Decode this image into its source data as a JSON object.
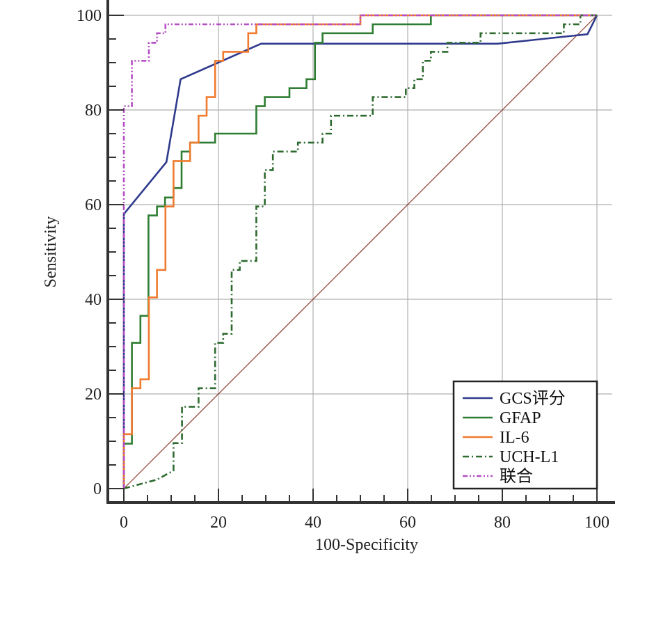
{
  "chart_data": {
    "type": "line",
    "title": "",
    "xlabel": "100-Specificity",
    "ylabel": "Sensitivity",
    "xlim": [
      0,
      100
    ],
    "ylim": [
      0,
      100
    ],
    "xticks": [
      "0",
      "20",
      "40",
      "60",
      "80",
      "100"
    ],
    "yticks": [
      "0",
      "20",
      "40",
      "60",
      "80",
      "100"
    ],
    "grid": true,
    "legend_position": "bottom-right",
    "reference_line": {
      "x": [
        0,
        100
      ],
      "y": [
        0,
        100
      ],
      "color": "#8b3a2a"
    },
    "series": [
      {
        "name": "GCS评分",
        "color": "#2e3a8c",
        "dash": "solid",
        "points": [
          [
            0,
            0
          ],
          [
            0,
            58
          ],
          [
            9,
            69
          ],
          [
            12,
            86.5
          ],
          [
            29,
            94
          ],
          [
            79,
            94
          ],
          [
            98,
            96
          ],
          [
            98,
            96
          ],
          [
            100,
            100
          ]
        ]
      },
      {
        "name": "GFAP",
        "color": "#2f7d32",
        "dash": "solid",
        "points": [
          [
            0,
            0
          ],
          [
            0,
            9.5
          ],
          [
            1.7,
            9.5
          ],
          [
            1.7,
            30.8
          ],
          [
            3.5,
            30.8
          ],
          [
            3.5,
            36.5
          ],
          [
            5.2,
            36.5
          ],
          [
            5.2,
            57.7
          ],
          [
            7,
            57.7
          ],
          [
            7,
            59.6
          ],
          [
            8.7,
            59.6
          ],
          [
            8.7,
            61.5
          ],
          [
            10.5,
            61.5
          ],
          [
            10.5,
            63.5
          ],
          [
            12.2,
            63.5
          ],
          [
            12.2,
            71.2
          ],
          [
            14,
            71.2
          ],
          [
            14,
            73.1
          ],
          [
            19.3,
            73.1
          ],
          [
            19.3,
            75
          ],
          [
            28,
            75
          ],
          [
            28,
            80.8
          ],
          [
            29.8,
            80.8
          ],
          [
            29.8,
            82.7
          ],
          [
            35,
            82.7
          ],
          [
            35,
            84.6
          ],
          [
            38.6,
            84.6
          ],
          [
            38.6,
            86.5
          ],
          [
            40.4,
            86.5
          ],
          [
            40.4,
            94.2
          ],
          [
            42,
            94.2
          ],
          [
            42,
            96.2
          ],
          [
            52.6,
            96.2
          ],
          [
            52.6,
            98.1
          ],
          [
            64.9,
            98.1
          ],
          [
            64.9,
            100
          ],
          [
            100,
            100
          ]
        ]
      },
      {
        "name": "IL-6",
        "color": "#f07a2e",
        "dash": "solid",
        "points": [
          [
            0,
            0
          ],
          [
            0,
            11.5
          ],
          [
            1.7,
            11.5
          ],
          [
            1.7,
            21.2
          ],
          [
            3.5,
            21.2
          ],
          [
            3.5,
            23.1
          ],
          [
            5.3,
            23.1
          ],
          [
            5.3,
            40.4
          ],
          [
            7,
            40.4
          ],
          [
            7,
            46.2
          ],
          [
            8.8,
            46.2
          ],
          [
            8.8,
            59.6
          ],
          [
            10.5,
            59.6
          ],
          [
            10.5,
            69.2
          ],
          [
            14,
            69.2
          ],
          [
            14,
            73.1
          ],
          [
            15.8,
            73.1
          ],
          [
            15.8,
            78.8
          ],
          [
            17.5,
            78.8
          ],
          [
            17.5,
            82.7
          ],
          [
            19.3,
            82.7
          ],
          [
            19.3,
            90.4
          ],
          [
            21,
            90.4
          ],
          [
            21,
            92.3
          ],
          [
            26.3,
            92.3
          ],
          [
            26.3,
            96.2
          ],
          [
            28,
            96.2
          ],
          [
            28,
            98.1
          ],
          [
            50,
            98.1
          ],
          [
            50,
            100
          ],
          [
            100,
            100
          ]
        ]
      },
      {
        "name": "UCH-L1",
        "color": "#2d6a2f",
        "dash": "dashdot",
        "points": [
          [
            0,
            0
          ],
          [
            7,
            1.9
          ],
          [
            10.5,
            3.8
          ],
          [
            10.5,
            9.6
          ],
          [
            12.3,
            9.6
          ],
          [
            12.3,
            17.3
          ],
          [
            15.8,
            17.3
          ],
          [
            15.8,
            21.2
          ],
          [
            19.3,
            21.2
          ],
          [
            19.3,
            30.8
          ],
          [
            21,
            30.8
          ],
          [
            21,
            32.7
          ],
          [
            22.8,
            32.7
          ],
          [
            22.8,
            46.2
          ],
          [
            24.5,
            46.2
          ],
          [
            24.5,
            48.1
          ],
          [
            28,
            48.1
          ],
          [
            28,
            59.6
          ],
          [
            29.8,
            59.6
          ],
          [
            29.8,
            67.3
          ],
          [
            31.5,
            67.3
          ],
          [
            31.5,
            71.2
          ],
          [
            36.8,
            71.2
          ],
          [
            36.8,
            73.1
          ],
          [
            42,
            73.1
          ],
          [
            42,
            75
          ],
          [
            43.8,
            75
          ],
          [
            43.8,
            78.8
          ],
          [
            52.6,
            78.8
          ],
          [
            52.6,
            82.7
          ],
          [
            59.6,
            82.7
          ],
          [
            59.6,
            84.6
          ],
          [
            61.4,
            84.6
          ],
          [
            61.4,
            86.5
          ],
          [
            63.2,
            86.5
          ],
          [
            63.2,
            90.4
          ],
          [
            64.9,
            90.4
          ],
          [
            64.9,
            92.3
          ],
          [
            68.4,
            92.3
          ],
          [
            68.4,
            94.2
          ],
          [
            75.4,
            94.2
          ],
          [
            75.4,
            96.2
          ],
          [
            93,
            96.2
          ],
          [
            93,
            98.1
          ],
          [
            96.5,
            98.1
          ],
          [
            96.5,
            100
          ],
          [
            100,
            100
          ]
        ]
      },
      {
        "name": "联合",
        "color": "#b44fc3",
        "dash": "dashdotdot",
        "points": [
          [
            0,
            0
          ],
          [
            0,
            80.8
          ],
          [
            1.7,
            80.8
          ],
          [
            1.7,
            90.4
          ],
          [
            5.3,
            90.4
          ],
          [
            5.3,
            94.2
          ],
          [
            7,
            94.2
          ],
          [
            7,
            96.2
          ],
          [
            8.8,
            96.2
          ],
          [
            8.8,
            98.1
          ],
          [
            50,
            98.1
          ],
          [
            50,
            100
          ],
          [
            100,
            100
          ]
        ]
      }
    ]
  }
}
